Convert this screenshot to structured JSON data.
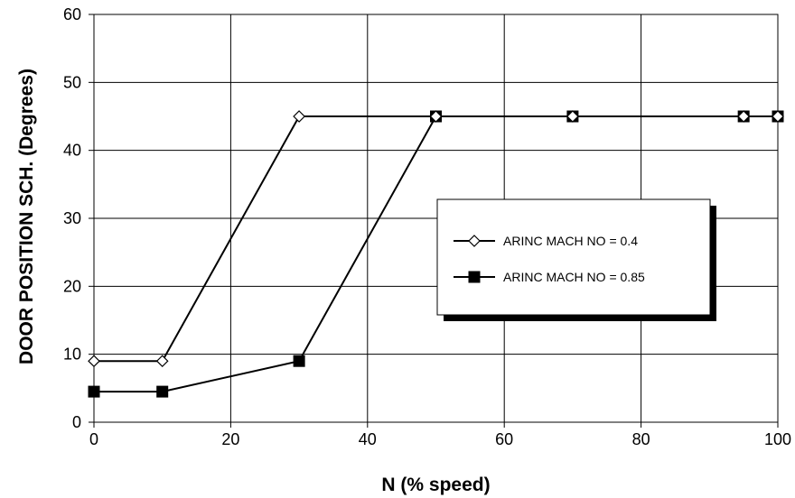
{
  "chart_data": {
    "type": "line",
    "xlabel": "N (% speed)",
    "ylabel": "DOOR POSITION SCH. (Degrees)",
    "xlim": [
      0,
      100
    ],
    "ylim": [
      0,
      60
    ],
    "x_ticks": [
      0,
      20,
      40,
      60,
      80,
      100
    ],
    "y_ticks": [
      0,
      10,
      20,
      30,
      40,
      50,
      60
    ],
    "grid": true,
    "legend_position": "center-right",
    "series": [
      {
        "name": "ARINC MACH NO = 0.4",
        "marker": "open-diamond",
        "color": "#000000",
        "x": [
          0,
          10,
          30,
          50,
          70,
          95,
          100
        ],
        "y": [
          9,
          9,
          45,
          45,
          45,
          45,
          45
        ]
      },
      {
        "name": "ARINC MACH NO = 0.85",
        "marker": "filled-square",
        "color": "#000000",
        "x": [
          0,
          10,
          30,
          50,
          70,
          95,
          100
        ],
        "y": [
          4.5,
          4.5,
          9,
          45,
          45,
          45,
          45
        ]
      }
    ]
  }
}
